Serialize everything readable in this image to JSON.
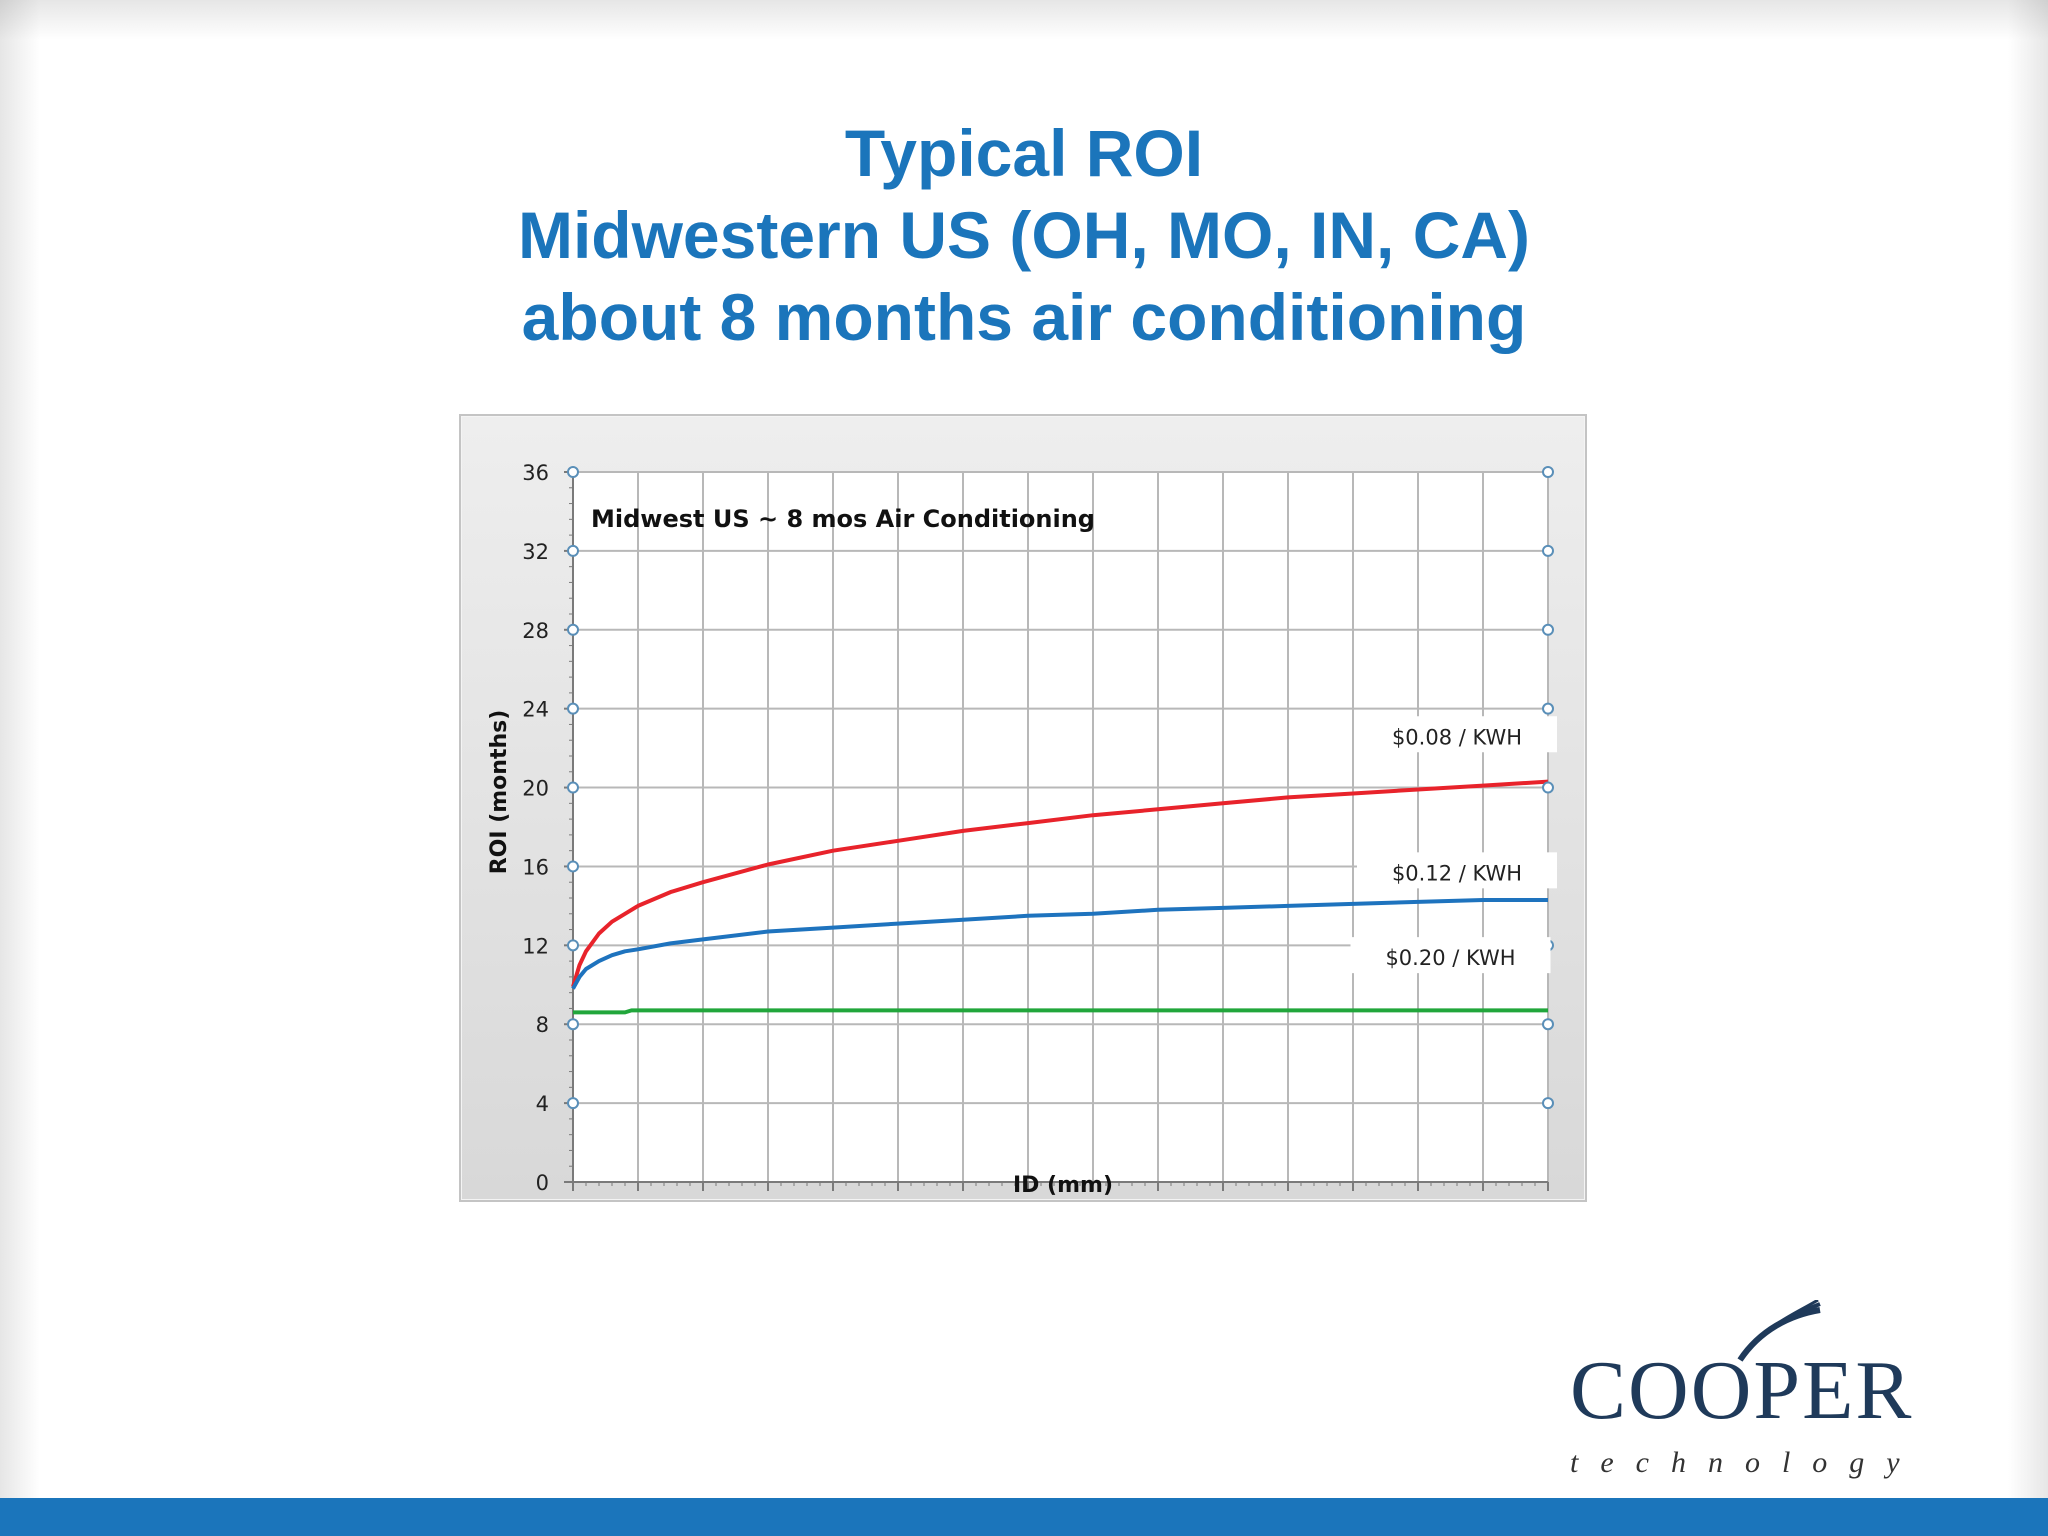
{
  "title": {
    "line1": "Typical ROI",
    "line2": "Midwestern US (OH, MO, IN, CA)",
    "line3": "about 8 months air conditioning"
  },
  "logo": {
    "word": "COOPER",
    "sub": "technology"
  },
  "colors": {
    "title": "#1b75bb",
    "bottom_bar": "#1b75bb",
    "series_red": "#e8232b",
    "series_blue": "#1e73be",
    "series_green": "#21a63b"
  },
  "chart_data": {
    "type": "line",
    "title": "Midwest US ~ 8 mos Air Conditioning",
    "xlabel": "ID (mm)",
    "ylabel": "ROI (months)",
    "xlim": [
      0,
      150
    ],
    "ylim": [
      0,
      36
    ],
    "xticks": [
      0,
      10,
      20,
      30,
      40,
      50,
      60,
      70,
      80,
      90,
      100,
      110,
      120,
      130,
      140,
      150
    ],
    "yticks": [
      0,
      4,
      8,
      12,
      16,
      20,
      24,
      28,
      32,
      36
    ],
    "grid": true,
    "legend": "inline labels at right end of each line",
    "series": [
      {
        "name": "$0.08 / KWH",
        "color": "#e8232b",
        "x": [
          0,
          1,
          2,
          4,
          6,
          8,
          10,
          15,
          20,
          30,
          40,
          50,
          60,
          70,
          80,
          90,
          100,
          110,
          120,
          130,
          140,
          150
        ],
        "y": [
          9.9,
          11.0,
          11.7,
          12.6,
          13.2,
          13.6,
          14.0,
          14.7,
          15.2,
          16.1,
          16.8,
          17.3,
          17.8,
          18.2,
          18.6,
          18.9,
          19.2,
          19.5,
          19.7,
          19.9,
          20.1,
          20.3
        ]
      },
      {
        "name": "$0.12 / KWH",
        "color": "#1e73be",
        "x": [
          0,
          1,
          2,
          4,
          6,
          8,
          10,
          15,
          20,
          30,
          40,
          50,
          60,
          70,
          80,
          90,
          100,
          110,
          120,
          130,
          140,
          150
        ],
        "y": [
          9.8,
          10.4,
          10.8,
          11.2,
          11.5,
          11.7,
          11.8,
          12.1,
          12.3,
          12.7,
          12.9,
          13.1,
          13.3,
          13.5,
          13.6,
          13.8,
          13.9,
          14.0,
          14.1,
          14.2,
          14.3,
          14.3
        ]
      },
      {
        "name": "$0.20 / KWH",
        "color": "#21a63b",
        "x": [
          0,
          8,
          9,
          150
        ],
        "y": [
          8.6,
          8.6,
          8.7,
          8.7
        ]
      }
    ]
  }
}
